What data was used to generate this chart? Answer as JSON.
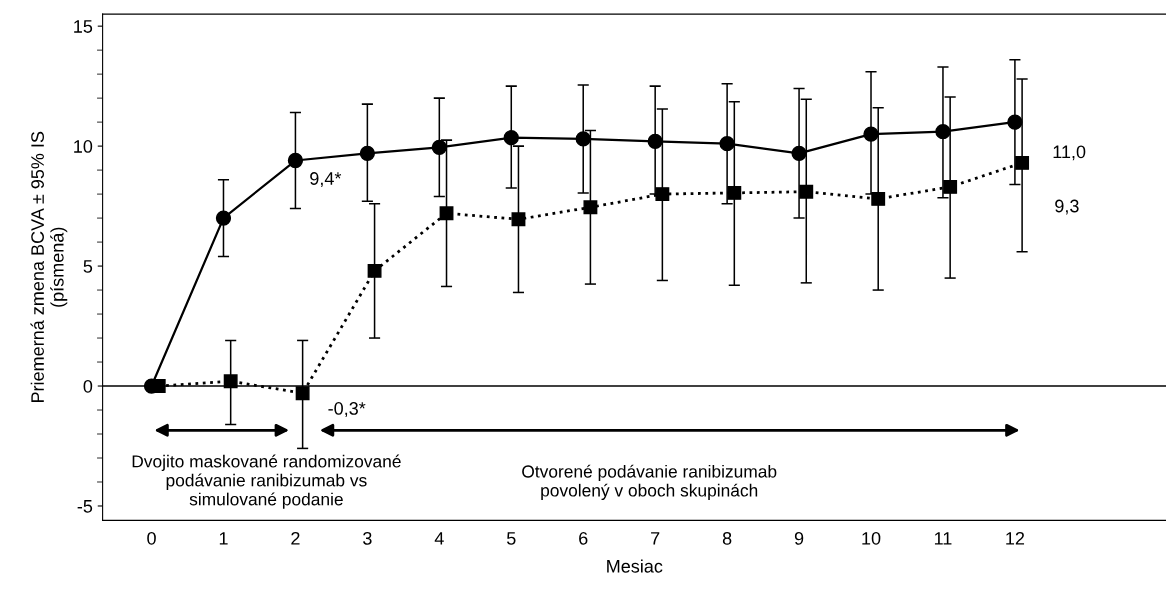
{
  "chart_data": {
    "type": "line",
    "xlabel": "Mesiac",
    "ylabel": "Priemerná zmena BCVA ± 95% IS\n(písmená)",
    "xlim": [
      -0.68,
      14.1
    ],
    "ylim": [
      -5.6,
      15.5
    ],
    "xticks": [
      0,
      1,
      2,
      3,
      4,
      5,
      6,
      7,
      8,
      9,
      10,
      11,
      12
    ],
    "yticks": [
      -5,
      0,
      5,
      10,
      15
    ],
    "grid": false,
    "legend": false,
    "series": [
      {
        "color": "#000000",
        "marker": "circle",
        "line_style": "solid",
        "x": [
          0,
          1,
          2,
          3,
          4,
          5,
          6,
          7,
          8,
          9,
          10,
          11,
          12
        ],
        "values": [
          0,
          7.0,
          9.4,
          9.7,
          9.95,
          10.35,
          10.3,
          10.2,
          10.1,
          9.7,
          10.5,
          10.6,
          11.0
        ],
        "errors": [
          null,
          [
            5.4,
            8.6
          ],
          [
            7.4,
            11.4
          ],
          [
            7.7,
            11.75
          ],
          [
            7.9,
            12.0
          ],
          [
            8.25,
            12.5
          ],
          [
            8.05,
            12.55
          ],
          [
            8.0,
            12.5
          ],
          [
            7.6,
            12.6
          ],
          [
            7.0,
            12.4
          ],
          [
            8.0,
            13.1
          ],
          [
            7.85,
            13.3
          ],
          [
            8.4,
            13.6
          ]
        ]
      },
      {
        "color": "#000000",
        "marker": "square",
        "line_style": "dotted",
        "x": [
          0.1,
          1.1,
          2.1,
          3.1,
          4.1,
          5.1,
          6.1,
          7.1,
          8.1,
          9.1,
          10.1,
          11.1,
          12.1
        ],
        "values": [
          0,
          0.2,
          -0.3,
          4.8,
          7.2,
          6.95,
          7.45,
          8.0,
          8.05,
          8.1,
          7.8,
          8.3,
          9.3
        ],
        "errors": [
          null,
          [
            -1.6,
            1.9
          ],
          [
            -2.6,
            1.9
          ],
          [
            2.0,
            7.6
          ],
          [
            4.15,
            10.25
          ],
          [
            3.9,
            10.0
          ],
          [
            4.25,
            10.65
          ],
          [
            4.4,
            11.55
          ],
          [
            4.2,
            11.85
          ],
          [
            4.3,
            11.95
          ],
          [
            4.0,
            11.6
          ],
          [
            4.5,
            12.05
          ],
          [
            5.6,
            12.8
          ]
        ]
      }
    ],
    "ref_lines": [
      {
        "axis": "y",
        "value": 0,
        "color": "#000000"
      }
    ],
    "annotations": [
      {
        "text": "9,4*",
        "x": 2,
        "y": 9.4
      },
      {
        "text": "-0,3*",
        "x": 2.1,
        "y": -0.3
      },
      "11,0",
      "9,3",
      "Dvojito maskované randomizované\npodávanie ranibizumab vs\nsimulované podanie",
      "Otvorené podávanie ranibizumab\npovolený v oboch skupinách"
    ]
  }
}
